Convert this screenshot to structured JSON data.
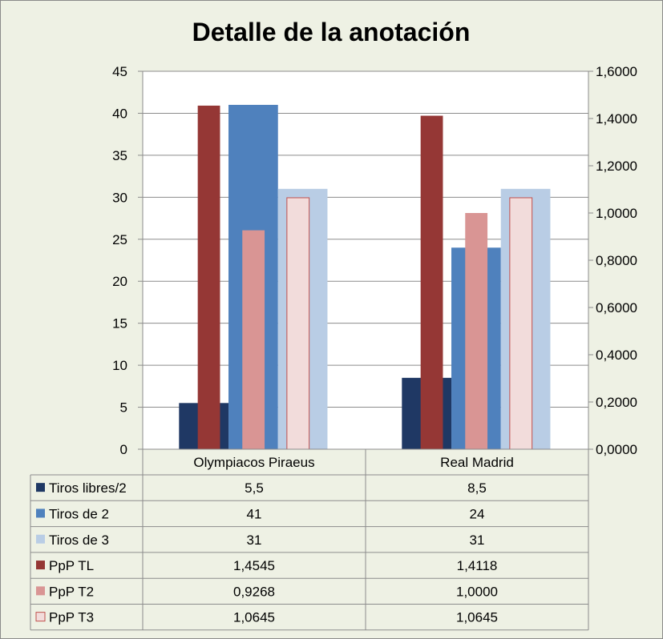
{
  "chart_data": {
    "type": "bar",
    "title": "Detalle de la anotación",
    "categories": [
      "Olympiacos Piraeus",
      "Real Madrid"
    ],
    "y_left": {
      "min": 0,
      "max": 45,
      "step": 5,
      "tick_labels": [
        "0",
        "5",
        "10",
        "15",
        "20",
        "25",
        "30",
        "35",
        "40",
        "45"
      ]
    },
    "y_right": {
      "min": 0,
      "max": 1.6,
      "step": 0.2,
      "tick_labels": [
        "0,0000",
        "0,2000",
        "0,4000",
        "0,6000",
        "0,8000",
        "1,0000",
        "1,2000",
        "1,4000",
        "1,6000"
      ]
    },
    "grid": true,
    "legend": "data-table",
    "series": [
      {
        "name": "Tiros libres/2",
        "axis": "left",
        "color": "#1f3864",
        "values": [
          5.5,
          8.5
        ],
        "labels": [
          "5,5",
          "8,5"
        ]
      },
      {
        "name": "Tiros de 2",
        "axis": "left",
        "color": "#4f81bd",
        "values": [
          41,
          24
        ],
        "labels": [
          "41",
          "24"
        ]
      },
      {
        "name": "Tiros de 3",
        "axis": "left",
        "color": "#b9cde5",
        "values": [
          31,
          31
        ],
        "labels": [
          "31",
          "31"
        ]
      },
      {
        "name": "PpP TL",
        "axis": "right",
        "color": "#953735",
        "values": [
          1.4545,
          1.4118
        ],
        "labels": [
          "1,4545",
          "1,4118"
        ]
      },
      {
        "name": "PpP T2",
        "axis": "right",
        "color": "#d99594",
        "values": [
          0.9268,
          1.0
        ],
        "labels": [
          "0,9268",
          "1,0000"
        ]
      },
      {
        "name": "PpP T3",
        "axis": "right",
        "color": "#f2dcdb",
        "outline": "#c0504d",
        "values": [
          1.0645,
          1.0645
        ],
        "labels": [
          "1,0645",
          "1,0645"
        ]
      }
    ]
  }
}
